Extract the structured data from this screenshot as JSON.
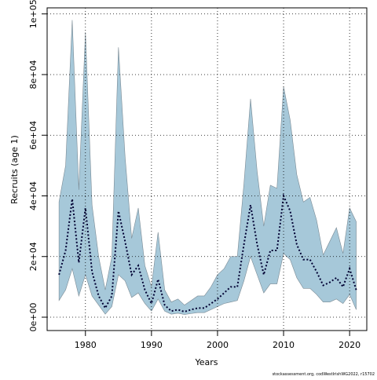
{
  "chart_data": {
    "type": "line",
    "x_label": "Years",
    "y_label": "Recruits (age 1)",
    "footnote": "stockassessment.org, codWestIrishWG2022, r15702",
    "x": [
      1976,
      1977,
      1978,
      1979,
      1980,
      1981,
      1982,
      1983,
      1984,
      1985,
      1986,
      1987,
      1988,
      1989,
      1990,
      1991,
      1992,
      1993,
      1994,
      1995,
      1996,
      1997,
      1998,
      1999,
      2000,
      2001,
      2002,
      2003,
      2004,
      2005,
      2006,
      2007,
      2008,
      2009,
      2010,
      2011,
      2012,
      2013,
      2014,
      2015,
      2016,
      2017,
      2018,
      2019,
      2020,
      2021
    ],
    "values": [
      14000,
      22000,
      39000,
      18000,
      36000,
      15000,
      7000,
      3000,
      7000,
      35000,
      25000,
      14000,
      17000,
      9000,
      4500,
      12500,
      4000,
      2000,
      2500,
      1800,
      2500,
      3000,
      3000,
      4500,
      6000,
      8000,
      10000,
      10000,
      24000,
      37000,
      24000,
      14000,
      22000,
      22000,
      40000,
      35000,
      24000,
      19000,
      19000,
      15000,
      10500,
      11500,
      13000,
      10000,
      16000,
      9000
    ],
    "lower": [
      5500,
      9000,
      16000,
      7000,
      14000,
      7000,
      4000,
      1000,
      3500,
      14000,
      12000,
      6500,
      8000,
      4500,
      2000,
      6000,
      2000,
      1000,
      1300,
      900,
      1200,
      1500,
      1500,
      2500,
      3500,
      4500,
      5000,
      5500,
      12000,
      20000,
      14000,
      8000,
      11000,
      11000,
      21000,
      19000,
      13000,
      9500,
      9500,
      7500,
      5000,
      5000,
      6000,
      4500,
      7500,
      2500
    ],
    "upper": [
      38000,
      50000,
      98000,
      42000,
      94000,
      37000,
      20000,
      9000,
      20000,
      89000,
      53000,
      26000,
      36000,
      17000,
      10000,
      28000,
      9000,
      5000,
      6000,
      4000,
      5500,
      7000,
      7000,
      10000,
      14000,
      16000,
      20000,
      20000,
      44000,
      72000,
      48000,
      30000,
      43500,
      42500,
      76000,
      65000,
      47000,
      38000,
      39500,
      32000,
      20500,
      25000,
      29500,
      21000,
      36000,
      31500
    ],
    "line_color": "#000033",
    "band_color": "#a6c8d9",
    "band_edge_color": "#7a8a94",
    "xlim": [
      1974.2,
      2022.6
    ],
    "ylim": [
      -4400,
      102000
    ],
    "xticks": [
      1980,
      1990,
      2000,
      2010,
      2020
    ],
    "yticks": [
      {
        "value": 0,
        "label": "0e+00"
      },
      {
        "value": 20000,
        "label": "2e+04"
      },
      {
        "value": 40000,
        "label": "4e+04"
      },
      {
        "value": 60000,
        "label": "6e+04"
      },
      {
        "value": 80000,
        "label": "8e+04"
      },
      {
        "value": 100000,
        "label": "1e+05"
      }
    ],
    "grid": true
  }
}
